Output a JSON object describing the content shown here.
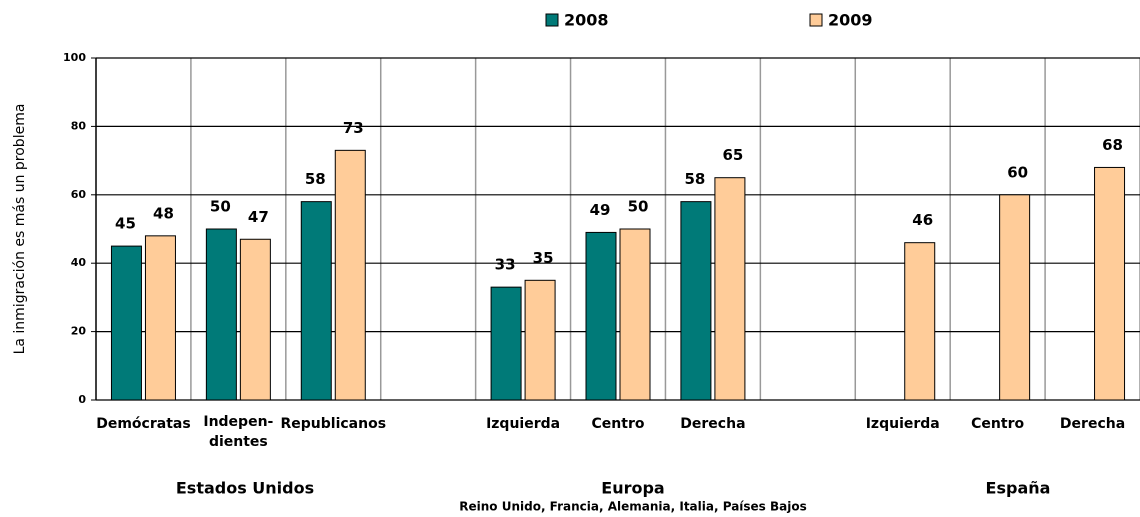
{
  "chart_data": {
    "type": "bar",
    "y_label": "La inmigración es más un problema",
    "categories": [
      "Demócratas",
      [
        "Indepen-",
        "dientes"
      ],
      "Republicanos",
      null,
      "Izquierda",
      "Centro",
      "Derecha",
      null,
      "Izquierda",
      "Centro",
      "Derecha"
    ],
    "series": [
      {
        "name": "2008",
        "color": "#007a78",
        "values": [
          45,
          50,
          58,
          null,
          33,
          49,
          58,
          null,
          null,
          null,
          null
        ]
      },
      {
        "name": "2009",
        "color": "#ffcc99",
        "values": [
          48,
          47,
          73,
          null,
          35,
          50,
          65,
          null,
          46,
          60,
          68
        ]
      }
    ],
    "groups": [
      {
        "name": "Estados Unidos"
      },
      {
        "name": "Europa",
        "subtitle": "Reino Unido, Francia, Alemania, Italia, Países Bajos"
      },
      {
        "name": "España"
      }
    ],
    "ylim": [
      0,
      100
    ],
    "yticks": [
      0,
      20,
      40,
      60,
      80,
      100
    ],
    "grid": true
  }
}
